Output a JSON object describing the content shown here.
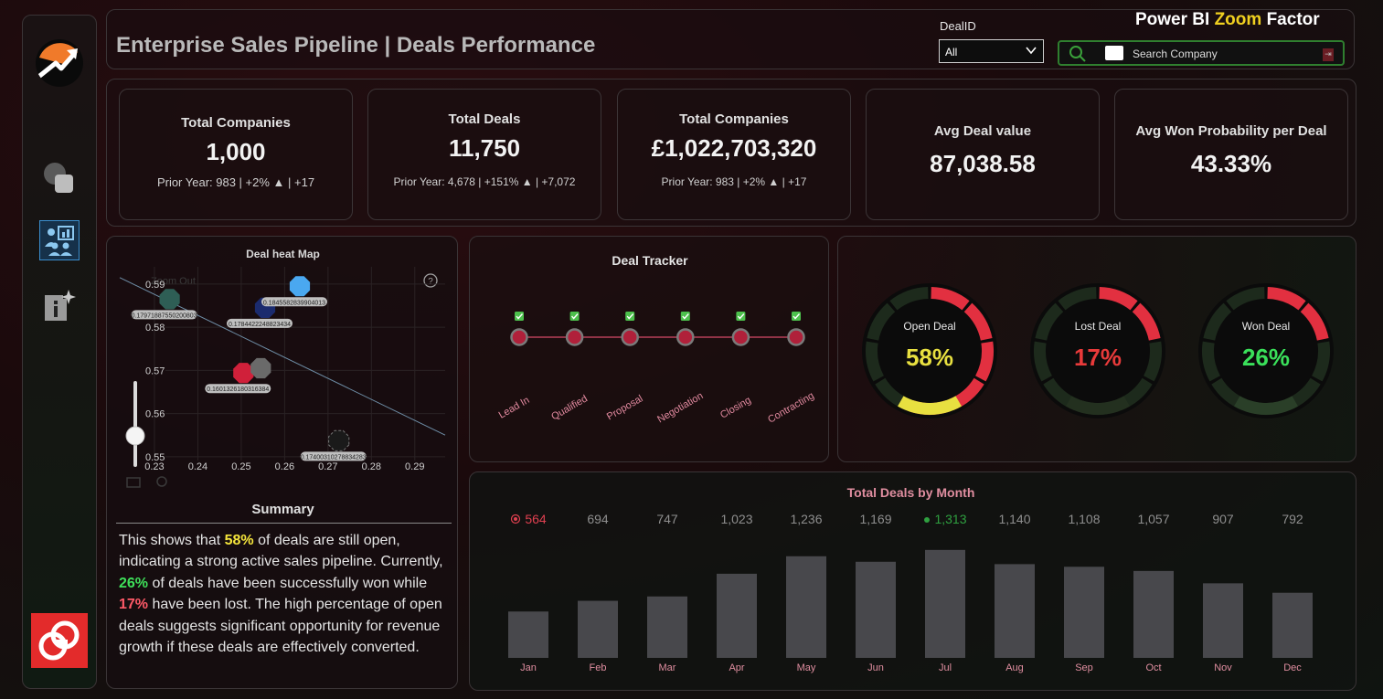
{
  "header": {
    "title": "Enterprise Sales Pipeline | Deals Performance",
    "dealid_label": "DealID",
    "dealid_value": "All",
    "brand_part1": "Power BI ",
    "brand_accent": "Zoom",
    "brand_part2": " Factor",
    "search_placeholder": "Search Company"
  },
  "kpis": [
    {
      "title": "Total Companies",
      "value": "1,000",
      "sub": "Prior Year: 983 | +2% ▲ | +17"
    },
    {
      "title": "Total Deals",
      "value": "11,750",
      "sub": "Prior Year: 4,678 | +151% ▲ | +7,072"
    },
    {
      "title": "Total Companies",
      "value": "£1,022,703,320",
      "sub": "Prior Year: 983 | +2% ▲ | +17"
    },
    {
      "title": "Avg Deal value",
      "value": "87,038.58",
      "sub": ""
    },
    {
      "title": "Avg Won Probability per Deal",
      "value": "43.33%",
      "sub": ""
    }
  ],
  "heatmap": {
    "title": "Deal heat Map",
    "zoom_label": "Zoom Out",
    "help_symbol": "?",
    "chart_data": {
      "type": "scatter",
      "title": "Deal heat Map",
      "x_ticks": [
        "0.23",
        "0.24",
        "0.25",
        "0.26",
        "0.27",
        "0.28",
        "0.29"
      ],
      "y_ticks": [
        "0.59",
        "0.58",
        "0.57",
        "0.56",
        "0.55"
      ],
      "xlim": [
        0.222,
        0.297
      ],
      "ylim": [
        0.547,
        0.594
      ],
      "points": [
        {
          "x": 0.2335,
          "y": 0.5865,
          "color": "#2e5e55",
          "label": "0.17971887550200803"
        },
        {
          "x": 0.2555,
          "y": 0.5845,
          "color": "#1b2b6e",
          "label": "0.1784422248823434"
        },
        {
          "x": 0.2635,
          "y": 0.5895,
          "color": "#4aa8f0",
          "label": "0.1845582839904013"
        },
        {
          "x": 0.2505,
          "y": 0.5694,
          "color": "#d0203a",
          "label": "0.1601326180316384"
        },
        {
          "x": 0.2545,
          "y": 0.5705,
          "color": "#6a6a6a",
          "label": ""
        },
        {
          "x": 0.2725,
          "y": 0.5537,
          "color": "#1a1a1a",
          "label": "0.17400310278834283"
        }
      ],
      "trend": [
        [
          0.222,
          0.5915
        ],
        [
          0.297,
          0.555
        ]
      ]
    }
  },
  "summary": {
    "title": "Summary",
    "t1": "This shows that ",
    "open_pct": "58%",
    "t2": " of deals are still open, indicating a strong active sales pipeline. Currently, ",
    "won_pct": "26%",
    "t3": " of deals have been successfully won while ",
    "lost_pct": "17%",
    "t4": " have been lost. The high percentage of open deals suggests significant opportunity for revenue growth if these deals are effectively converted."
  },
  "tracker": {
    "title": "Deal Tracker",
    "stages": [
      "Lead In",
      "Qualified",
      "Proposal",
      "Negotiation",
      "Closing",
      "Contracting"
    ]
  },
  "gauges": [
    {
      "label": "Open Deal",
      "value": "58%",
      "fraction": 0.58,
      "color": "#e8e040"
    },
    {
      "label": "Lost Deal",
      "value": "17%",
      "fraction": 0.17,
      "color": "#e83a3a"
    },
    {
      "label": "Won Deal",
      "value": "26%",
      "fraction": 0.26,
      "color": "#3ae05a"
    }
  ],
  "monthly": {
    "title": "Total Deals by Month",
    "chart_data": {
      "type": "bar",
      "title": "Total Deals by Month",
      "categories": [
        "Jan",
        "Feb",
        "Mar",
        "Apr",
        "May",
        "Jun",
        "Jul",
        "Aug",
        "Sep",
        "Oct",
        "Nov",
        "Dec"
      ],
      "values": [
        564,
        694,
        747,
        1023,
        1236,
        1169,
        1313,
        1140,
        1108,
        1057,
        907,
        792
      ],
      "value_labels": [
        "564",
        "694",
        "747",
        "1,023",
        "1,236",
        "1,169",
        "1,313",
        "1,140",
        "1,108",
        "1,057",
        "907",
        "792"
      ],
      "min_category": "Jan",
      "max_category": "Jul",
      "bar_color": "#48484c",
      "min_color": "#e04050",
      "max_color": "#2fa040"
    }
  },
  "colors": {
    "accent_red": "#e32b2b",
    "accent_green": "#2f7f2f",
    "accent_yellow": "#f0d020"
  },
  "icons": {
    "logo": "growth-arrow-icon",
    "nav1": "shapes-icon",
    "nav2": "team-chart-icon",
    "nav3": "info-sparkle-icon",
    "badge": "brand-logo-icon",
    "search": "search-icon"
  }
}
